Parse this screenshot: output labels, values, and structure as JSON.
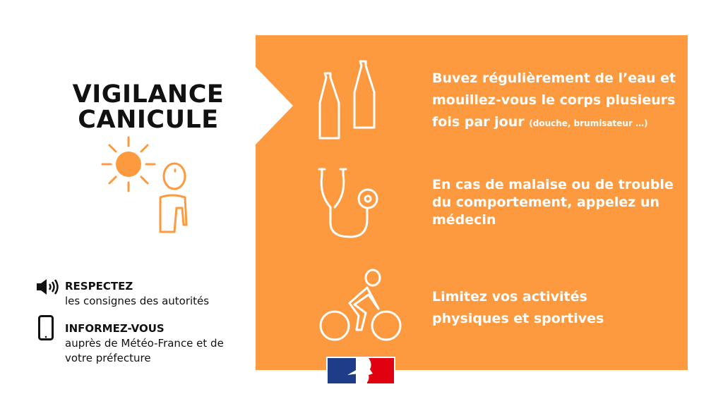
{
  "title": {
    "line1": "VIGILANCE",
    "line2": "CANICULE"
  },
  "colors": {
    "accent": "#FD9A3F",
    "text": "#111111",
    "flag_blue": "#1F3C88",
    "flag_red": "#E1000F"
  },
  "advice": [
    {
      "icon": "bottles-icon",
      "text": "Buvez régulièrement de l’eau et mouillez-vous le corps plusieurs fois par jour",
      "note": "(douche, brumisateur …)"
    },
    {
      "icon": "stethoscope-icon",
      "text": "En cas de malaise ou de trouble du comportement, appelez un médecin"
    },
    {
      "icon": "cyclist-icon",
      "text": "Limitez vos activités physiques et sportives"
    }
  ],
  "info": [
    {
      "icon": "speaker-icon",
      "heading": "RESPECTEZ",
      "text": "les consignes des autorités"
    },
    {
      "icon": "smartphone-icon",
      "heading": "INFORMEZ-VOUS",
      "text": "auprès de Météo-France et de votre préfecture"
    }
  ],
  "logo": "République Française"
}
